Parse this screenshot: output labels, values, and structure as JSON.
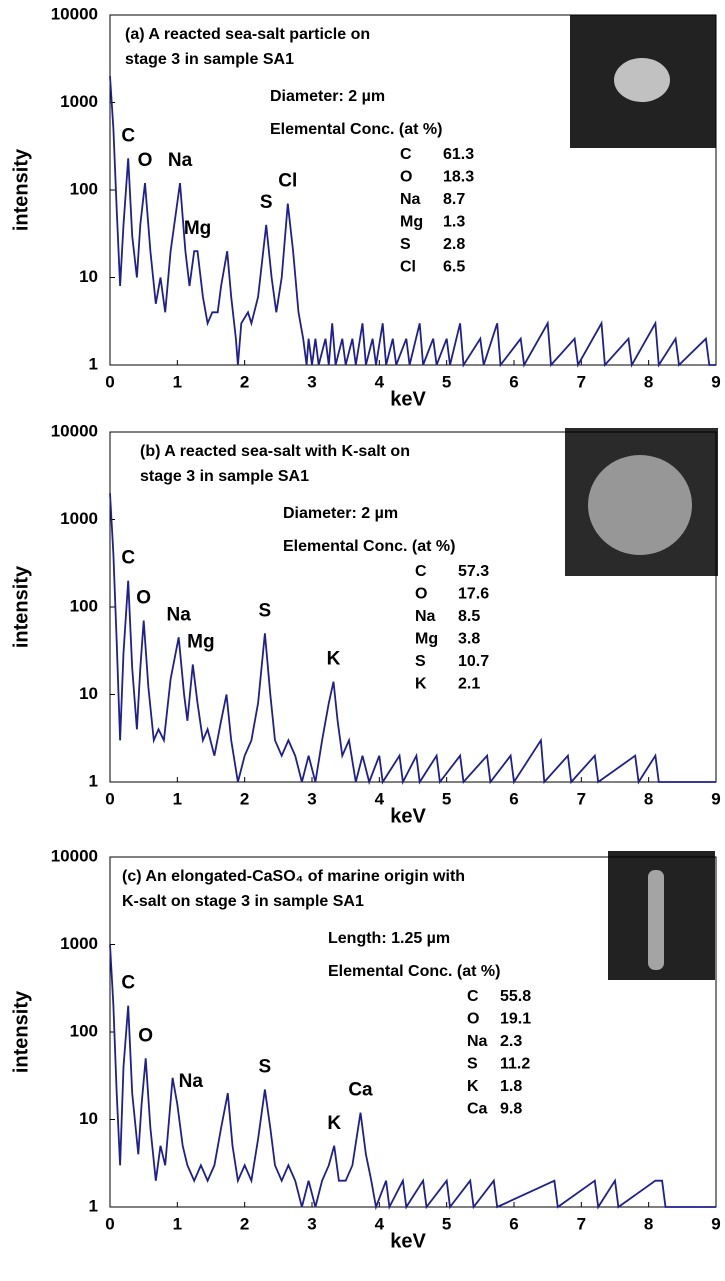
{
  "chart_data": [
    {
      "type": "line",
      "title": [
        "(a) A reacted sea-salt particle on",
        "stage 3 in sample SA1"
      ],
      "size_label": "Diameter: 2 µm",
      "conc_label": "Elemental Conc. (at %)",
      "elements": [
        {
          "name": "C",
          "value": 61.3
        },
        {
          "name": "O",
          "value": 18.3
        },
        {
          "name": "Na",
          "value": 8.7
        },
        {
          "name": "Mg",
          "value": 1.3
        },
        {
          "name": "S",
          "value": 2.8
        },
        {
          "name": "Cl",
          "value": 6.5
        }
      ],
      "x_label": "keV",
      "y_label": "intensity",
      "color": "#1f1f8f",
      "log_y": true,
      "xlim": [
        0,
        9
      ],
      "xticks": [
        0,
        1,
        2,
        3,
        4,
        5,
        6,
        7,
        8,
        9
      ],
      "ylim": [
        1,
        10000
      ],
      "yticks": [
        1,
        10,
        100,
        1000,
        10000
      ],
      "peaks": [
        {
          "label": "C",
          "x": 0.27,
          "y": 230
        },
        {
          "label": "O",
          "x": 0.52,
          "y": 120
        },
        {
          "label": "Na",
          "x": 1.04,
          "y": 120
        },
        {
          "label": "Mg",
          "x": 1.3,
          "y": 20
        },
        {
          "label": "S",
          "x": 2.32,
          "y": 40
        },
        {
          "label": "Cl",
          "x": 2.64,
          "y": 70
        }
      ],
      "x": [
        0,
        0.05,
        0.1,
        0.15,
        0.2,
        0.27,
        0.33,
        0.4,
        0.45,
        0.52,
        0.6,
        0.68,
        0.75,
        0.82,
        0.9,
        1.04,
        1.12,
        1.18,
        1.25,
        1.3,
        1.38,
        1.45,
        1.52,
        1.6,
        1.65,
        1.74,
        1.8,
        1.87,
        1.9,
        1.95,
        2.05,
        2.1,
        2.2,
        2.32,
        2.4,
        2.47,
        2.55,
        2.64,
        2.72,
        2.8,
        2.87,
        2.92,
        2.95,
        3.0,
        3.05,
        3.1,
        3.2,
        3.25,
        3.3,
        3.35,
        3.45,
        3.5,
        3.6,
        3.65,
        3.75,
        3.8,
        3.9,
        3.95,
        4.05,
        4.1,
        4.2,
        4.25,
        4.4,
        4.45,
        4.6,
        4.65,
        4.8,
        4.85,
        5.0,
        5.05,
        5.2,
        5.25,
        5.5,
        5.55,
        5.75,
        5.8,
        6.1,
        6.15,
        6.5,
        6.55,
        6.9,
        6.95,
        7.3,
        7.35,
        7.7,
        7.75,
        8.1,
        8.15,
        8.4,
        8.45,
        8.85,
        8.9,
        9.0
      ],
      "values": [
        2000,
        500,
        60,
        8,
        40,
        230,
        30,
        10,
        40,
        120,
        20,
        5,
        10,
        4,
        20,
        120,
        20,
        8,
        20,
        20,
        6,
        3,
        4,
        4,
        8,
        20,
        6,
        2,
        1,
        3,
        4,
        3,
        6,
        40,
        10,
        4,
        10,
        70,
        20,
        4,
        2,
        1,
        2,
        1,
        2,
        1,
        2,
        1,
        3,
        1,
        2,
        1,
        2,
        1,
        3,
        1,
        2,
        1,
        3,
        1,
        2,
        1,
        2,
        1,
        3,
        1,
        2,
        1,
        2,
        1,
        3,
        1,
        2,
        1,
        3,
        1,
        2,
        1,
        3,
        1,
        2,
        1,
        3,
        1,
        2,
        1,
        3,
        1,
        2,
        1,
        2,
        1,
        1
      ]
    },
    {
      "type": "line",
      "title": [
        "(b) A reacted sea-salt with K-salt on",
        "stage 3 in sample SA1"
      ],
      "size_label": "Diameter: 2 µm",
      "conc_label": "Elemental Conc. (at %)",
      "elements": [
        {
          "name": "C",
          "value": 57.3
        },
        {
          "name": "O",
          "value": 17.6
        },
        {
          "name": "Na",
          "value": 8.5
        },
        {
          "name": "Mg",
          "value": 3.8
        },
        {
          "name": "S",
          "value": 10.7
        },
        {
          "name": "K",
          "value": 2.1
        }
      ],
      "x_label": "keV",
      "y_label": "intensity",
      "color": "#1f1f8f",
      "log_y": true,
      "xlim": [
        0,
        9
      ],
      "xticks": [
        0,
        1,
        2,
        3,
        4,
        5,
        6,
        7,
        8,
        9
      ],
      "ylim": [
        1,
        10000
      ],
      "yticks": [
        1,
        10,
        100,
        1000,
        10000
      ],
      "peaks": [
        {
          "label": "C",
          "x": 0.27,
          "y": 200
        },
        {
          "label": "O",
          "x": 0.5,
          "y": 70
        },
        {
          "label": "Na",
          "x": 1.02,
          "y": 45
        },
        {
          "label": "Mg",
          "x": 1.35,
          "y": 22
        },
        {
          "label": "S",
          "x": 2.3,
          "y": 50
        },
        {
          "label": "K",
          "x": 3.32,
          "y": 14
        }
      ],
      "x": [
        0,
        0.05,
        0.1,
        0.15,
        0.2,
        0.27,
        0.33,
        0.4,
        0.45,
        0.5,
        0.57,
        0.65,
        0.72,
        0.8,
        0.9,
        1.02,
        1.1,
        1.15,
        1.23,
        1.3,
        1.38,
        1.45,
        1.55,
        1.65,
        1.73,
        1.8,
        1.9,
        2.0,
        2.1,
        2.2,
        2.3,
        2.38,
        2.45,
        2.55,
        2.65,
        2.75,
        2.85,
        2.95,
        3.05,
        3.15,
        3.25,
        3.32,
        3.38,
        3.45,
        3.55,
        3.65,
        3.75,
        3.85,
        4.0,
        4.05,
        4.3,
        4.35,
        4.55,
        4.6,
        4.85,
        4.9,
        5.2,
        5.25,
        5.6,
        5.65,
        5.95,
        6.0,
        6.4,
        6.45,
        6.8,
        6.85,
        7.2,
        7.25,
        7.8,
        7.85,
        8.1,
        8.15,
        9
      ],
      "values": [
        2000,
        400,
        40,
        3,
        30,
        200,
        20,
        4,
        20,
        70,
        12,
        3,
        4,
        3,
        15,
        45,
        10,
        5,
        22,
        8,
        3,
        4,
        2,
        5,
        10,
        3,
        1,
        2,
        3,
        8,
        50,
        10,
        3,
        2,
        3,
        2,
        1,
        2,
        1,
        3,
        8,
        14,
        5,
        2,
        3,
        1,
        2,
        1,
        2,
        1,
        2,
        1,
        2,
        1,
        2,
        1,
        2,
        1,
        2,
        1,
        2,
        1,
        3,
        1,
        2,
        1,
        2,
        1,
        2,
        1,
        2,
        1,
        1
      ]
    },
    {
      "type": "line",
      "title": [
        "(c) An elongated-CaSO₄ of marine origin with",
        "K-salt on stage 3 in sample SA1"
      ],
      "size_label": "Length: 1.25 µm",
      "conc_label": "Elemental Conc. (at %)",
      "elements": [
        {
          "name": "C",
          "value": 55.8
        },
        {
          "name": "O",
          "value": 19.1
        },
        {
          "name": "Na",
          "value": 2.3
        },
        {
          "name": "S",
          "value": 11.2
        },
        {
          "name": "K",
          "value": 1.8
        },
        {
          "name": "Ca",
          "value": 9.8
        }
      ],
      "x_label": "keV",
      "y_label": "intensity",
      "color": "#1f1f8f",
      "log_y": true,
      "xlim": [
        0,
        9
      ],
      "xticks": [
        0,
        1,
        2,
        3,
        4,
        5,
        6,
        7,
        8,
        9
      ],
      "ylim": [
        1,
        10000
      ],
      "yticks": [
        1,
        10,
        100,
        1000,
        10000
      ],
      "peaks": [
        {
          "label": "C",
          "x": 0.27,
          "y": 200
        },
        {
          "label": "O",
          "x": 0.53,
          "y": 50
        },
        {
          "label": "Na",
          "x": 1.2,
          "y": 15
        },
        {
          "label": "S",
          "x": 2.3,
          "y": 22
        },
        {
          "label": "K",
          "x": 3.33,
          "y": 5
        },
        {
          "label": "Ca",
          "x": 3.72,
          "y": 12
        }
      ],
      "x": [
        0,
        0.05,
        0.1,
        0.15,
        0.2,
        0.27,
        0.33,
        0.42,
        0.47,
        0.53,
        0.6,
        0.68,
        0.75,
        0.82,
        0.93,
        1.0,
        1.08,
        1.15,
        1.25,
        1.35,
        1.45,
        1.55,
        1.65,
        1.75,
        1.82,
        1.9,
        2.0,
        2.1,
        2.2,
        2.3,
        2.38,
        2.45,
        2.55,
        2.65,
        2.75,
        2.85,
        2.95,
        3.05,
        3.15,
        3.25,
        3.33,
        3.4,
        3.5,
        3.6,
        3.72,
        3.8,
        3.88,
        3.95,
        4.1,
        4.15,
        4.35,
        4.4,
        4.65,
        4.7,
        5.0,
        5.05,
        5.35,
        5.4,
        5.7,
        5.75,
        6.6,
        6.65,
        7.2,
        7.25,
        7.5,
        7.55,
        8.1,
        8.2,
        8.25,
        9
      ],
      "values": [
        1000,
        200,
        20,
        3,
        40,
        200,
        20,
        4,
        15,
        50,
        8,
        2,
        5,
        3,
        30,
        15,
        5,
        3,
        2,
        3,
        2,
        3,
        8,
        20,
        5,
        2,
        3,
        2,
        6,
        22,
        8,
        3,
        2,
        3,
        2,
        1,
        2,
        1,
        2,
        3,
        5,
        2,
        2,
        3,
        12,
        4,
        2,
        1,
        2,
        1,
        2,
        1,
        2,
        1,
        2,
        1,
        2,
        1,
        2,
        1,
        2,
        1,
        2,
        1,
        2,
        1,
        2,
        2,
        1,
        1
      ]
    }
  ]
}
